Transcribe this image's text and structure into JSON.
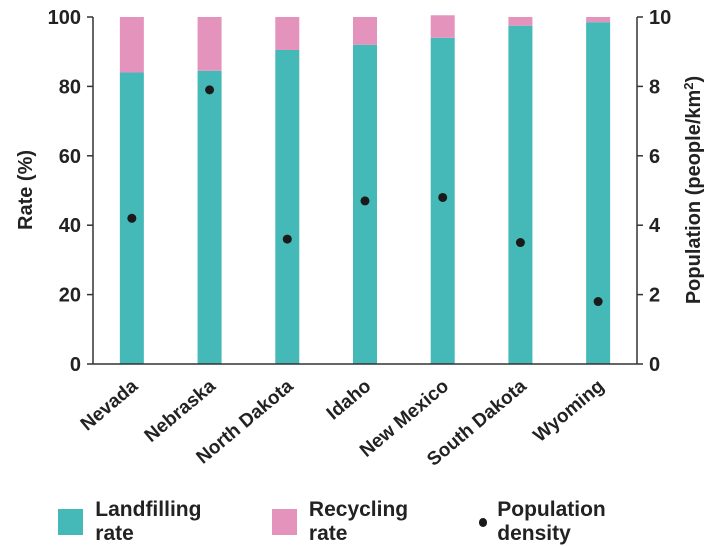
{
  "chart_data": {
    "type": "bar",
    "stacked": true,
    "categories": [
      "Nevada",
      "Nebraska",
      "North Dakota",
      "Idaho",
      "New Mexico",
      "South Dakota",
      "Wyoming"
    ],
    "series": [
      {
        "name": "Landfilling rate",
        "color": "#45b8b8",
        "values": [
          84,
          84.5,
          90.5,
          92,
          94,
          97.5,
          98.5
        ]
      },
      {
        "name": "Recycling rate",
        "color": "#e393bc",
        "values": [
          16,
          15.5,
          9.5,
          8,
          6.5,
          2.5,
          1.5
        ]
      }
    ],
    "points": {
      "name": "Population density",
      "color": "#1a1a1a",
      "values": [
        4.2,
        7.9,
        3.6,
        4.7,
        4.8,
        3.5,
        1.8
      ]
    },
    "ylabel": "Rate (%)",
    "y2label": "Population (people/km",
    "y2label_sup": "2",
    "y2label_end": ")",
    "ylim": [
      0,
      100
    ],
    "y2lim": [
      0,
      10
    ],
    "yticks": [
      "0",
      "20",
      "40",
      "60",
      "80",
      "100"
    ],
    "y2ticks": [
      "0",
      "2",
      "4",
      "6",
      "8",
      "10"
    ],
    "grid": false,
    "legend_position": "bottom"
  }
}
